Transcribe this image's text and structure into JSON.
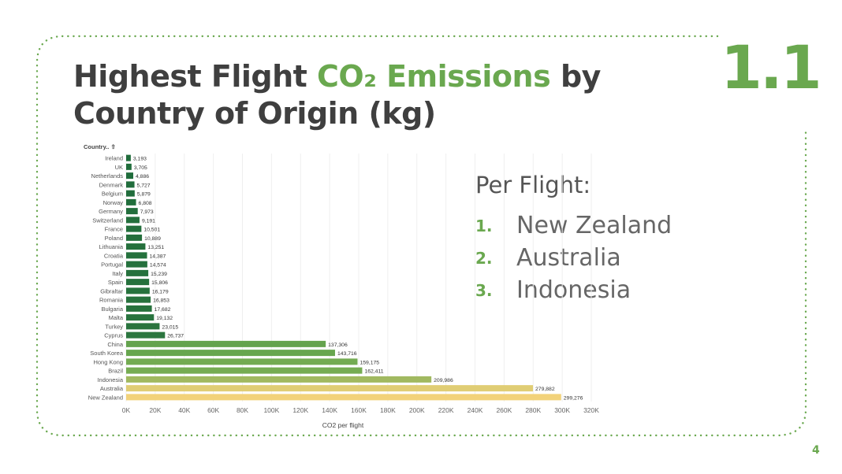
{
  "slide": {
    "title_part1": "Highest Flight ",
    "title_accent": "CO₂ Emissions",
    "title_part2": " by",
    "title_line2": "Country of Origin (kg)",
    "section_number": "1.1",
    "page_number": "4",
    "colors": {
      "accent": "#6aa84f",
      "text": "#3f3f3f"
    }
  },
  "ranking": {
    "heading": "Per Flight:",
    "items": [
      {
        "num": "1.",
        "name": "New Zealand"
      },
      {
        "num": "2.",
        "name": "Australia"
      },
      {
        "num": "3.",
        "name": "Indonesia"
      }
    ]
  },
  "chart_data": {
    "type": "bar",
    "orientation": "horizontal",
    "category_header": "Country.. ⇧",
    "xlabel": "CO2 per flight",
    "xlim": [
      0,
      320000
    ],
    "xticks": [
      "0K",
      "20K",
      "40K",
      "60K",
      "80K",
      "100K",
      "120K",
      "140K",
      "160K",
      "180K",
      "200K",
      "220K",
      "240K",
      "260K",
      "280K",
      "300K",
      "320K"
    ],
    "grid": true,
    "categories": [
      "Ireland",
      "UK",
      "Netherlands",
      "Denmark",
      "Belgium",
      "Norway",
      "Germany",
      "Switzerland",
      "France",
      "Poland",
      "Lithuania",
      "Croatia",
      "Portugal",
      "Italy",
      "Spain",
      "Gibraltar",
      "Romania",
      "Bulgaria",
      "Malta",
      "Turkey",
      "Cyprus",
      "China",
      "South Korea",
      "Hong Kong",
      "Brazil",
      "Indonesia",
      "Australia",
      "New Zealand"
    ],
    "values": [
      3193,
      3705,
      4886,
      5727,
      5879,
      6808,
      7973,
      9191,
      10501,
      10889,
      13251,
      14387,
      14574,
      15239,
      15806,
      16179,
      16853,
      17682,
      19132,
      23015,
      26737,
      137306,
      143716,
      159175,
      162411,
      209986,
      279882,
      299276
    ],
    "value_labels": [
      "3,193",
      "3,705",
      "4,886",
      "5,727",
      "5,879",
      "6,808",
      "7,973",
      "9,191",
      "10,501",
      "10,889",
      "13,251",
      "14,387",
      "14,574",
      "15,239",
      "15,806",
      "16,179",
      "16,853",
      "17,682",
      "19,132",
      "23,015",
      "26,737",
      "137,306",
      "143,716",
      "159,175",
      "162,411",
      "209,986",
      "279,882",
      "299,276"
    ],
    "color_scale": {
      "low": "#1e6b3b",
      "mid": "#6aa84f",
      "high": "#f2d27a"
    }
  }
}
